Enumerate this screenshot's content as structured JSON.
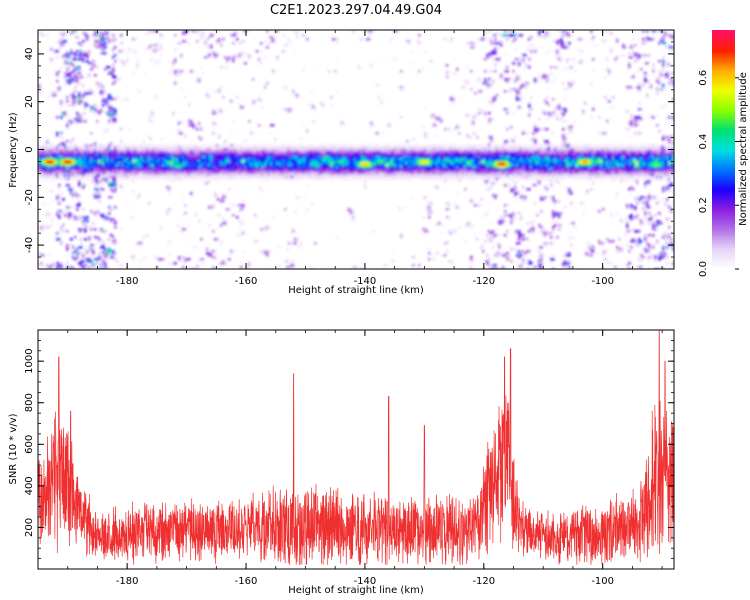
{
  "title": "C2E1.2023.297.04.49.G04",
  "chart_data": [
    {
      "type": "heatmap",
      "xlabel": "Height of straight line (km)",
      "ylabel": "Frequency (Hz)",
      "xlim": [
        -195,
        -88
      ],
      "ylim": [
        -50,
        50
      ],
      "xticks": [
        -180,
        -160,
        -140,
        -120,
        -100
      ],
      "xtick_labels": [
        "-180",
        "-160",
        "-140",
        "-120",
        "-100"
      ],
      "yticks": [
        -40,
        -20,
        0,
        20,
        40
      ],
      "ytick_labels": [
        "-40",
        "-20",
        "0",
        "20",
        "40"
      ],
      "colorbar": {
        "label": "Normalized spectral amplitude",
        "range": [
          0,
          0.75
        ],
        "ticks": [
          0.0,
          0.2,
          0.4,
          0.6
        ],
        "tick_labels": [
          "0.0",
          "0.2",
          "0.4",
          "0.6"
        ],
        "colors": [
          "#ffffff",
          "#e6d2f5",
          "#b06ee8",
          "#8a1ee0",
          "#1a00ff",
          "#0078ff",
          "#00e0e0",
          "#00e070",
          "#8aff00",
          "#f0ff00",
          "#ffb000",
          "#ff2000",
          "#ff1060"
        ]
      },
      "band": {
        "center_freq": -5,
        "halfwidth": 4
      },
      "hotspots": [
        {
          "x": -193,
          "y": -5,
          "v": 0.72
        },
        {
          "x": -190,
          "y": -5,
          "v": 0.72
        },
        {
          "x": -140,
          "y": -6,
          "v": 0.62
        },
        {
          "x": -130,
          "y": -5,
          "v": 0.6
        },
        {
          "x": -117,
          "y": -6,
          "v": 0.72
        },
        {
          "x": -103,
          "y": -5,
          "v": 0.65
        },
        {
          "x": -91,
          "y": -6,
          "v": 0.5
        }
      ],
      "scatter_activity": [
        {
          "x0": -192,
          "x1": -182,
          "level": 0.95
        },
        {
          "x0": -182,
          "x1": -172,
          "level": 0.35
        },
        {
          "x0": -172,
          "x1": -160,
          "level": 0.6
        },
        {
          "x0": -160,
          "x1": -150,
          "level": 0.45
        },
        {
          "x0": -150,
          "x1": -140,
          "level": 0.35
        },
        {
          "x0": -140,
          "x1": -130,
          "level": 0.3
        },
        {
          "x0": -130,
          "x1": -120,
          "level": 0.55
        },
        {
          "x0": -120,
          "x1": -114,
          "level": 0.85
        },
        {
          "x0": -114,
          "x1": -105,
          "level": 0.7
        },
        {
          "x0": -105,
          "x1": -96,
          "level": 0.4
        },
        {
          "x0": -96,
          "x1": -88,
          "level": 0.75
        }
      ]
    },
    {
      "type": "line",
      "xlabel": "Height of straight line (km)",
      "ylabel": "SNR (10 * v/v)",
      "xlim": [
        -195,
        -88
      ],
      "ylim": [
        0,
        1150
      ],
      "xticks": [
        -180,
        -160,
        -140,
        -120,
        -100
      ],
      "xtick_labels": [
        "-180",
        "-160",
        "-140",
        "-120",
        "-100"
      ],
      "yticks": [
        200,
        400,
        600,
        800,
        1000
      ],
      "ytick_labels": [
        "200",
        "400",
        "600",
        "800",
        "1000"
      ],
      "color": "#f03030",
      "envelope": [
        {
          "x": -195,
          "base": 320,
          "amp": 260
        },
        {
          "x": -192,
          "base": 450,
          "amp": 380
        },
        {
          "x": -190,
          "base": 400,
          "amp": 350
        },
        {
          "x": -188,
          "base": 260,
          "amp": 190
        },
        {
          "x": -185,
          "base": 160,
          "amp": 150
        },
        {
          "x": -170,
          "base": 180,
          "amp": 170
        },
        {
          "x": -160,
          "base": 200,
          "amp": 180
        },
        {
          "x": -152,
          "base": 210,
          "amp": 230
        },
        {
          "x": -140,
          "base": 190,
          "amp": 200
        },
        {
          "x": -130,
          "base": 190,
          "amp": 200
        },
        {
          "x": -121,
          "base": 190,
          "amp": 200
        },
        {
          "x": -118,
          "base": 480,
          "amp": 380
        },
        {
          "x": -116,
          "base": 500,
          "amp": 400
        },
        {
          "x": -114,
          "base": 200,
          "amp": 150
        },
        {
          "x": -108,
          "base": 150,
          "amp": 140
        },
        {
          "x": -100,
          "base": 170,
          "amp": 180
        },
        {
          "x": -94,
          "base": 220,
          "amp": 200
        },
        {
          "x": -91,
          "base": 430,
          "amp": 450
        },
        {
          "x": -88,
          "base": 420,
          "amp": 350
        }
      ],
      "peaks": [
        {
          "x": -191.5,
          "y": 1020
        },
        {
          "x": -189.5,
          "y": 760
        },
        {
          "x": -152,
          "y": 940
        },
        {
          "x": -136,
          "y": 830
        },
        {
          "x": -130,
          "y": 690
        },
        {
          "x": -116.5,
          "y": 1020
        },
        {
          "x": -115.5,
          "y": 1060
        },
        {
          "x": -90.5,
          "y": 1150
        },
        {
          "x": -89.5,
          "y": 1000
        }
      ]
    }
  ]
}
